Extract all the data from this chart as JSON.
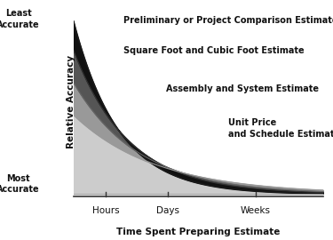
{
  "xlabel": "Time Spent Preparing Estimate",
  "ylabel": "Relative Accuracy",
  "y_least_label": "Least\nAccurate",
  "y_most_label": "Most\nAccurate",
  "x_ticks_labels": [
    "Hours",
    "Days",
    "Weeks"
  ],
  "x_ticks_pos": [
    0.13,
    0.38,
    0.73
  ],
  "curve_labels": [
    "Preliminary or Project Comparison Estimate",
    "Square Foot and Cubic Foot Estimate",
    "Assembly and System Estimate",
    "Unit Price\nand Schedule Estimate"
  ],
  "colors": {
    "c1": "#111111",
    "c2": "#555555",
    "c3": "#999999",
    "c4": "#cccccc",
    "bg": "#ffffff",
    "text": "#111111"
  },
  "font_sizes": {
    "label_bold": 7.5,
    "tick": 7.5,
    "annotation": 7.0
  }
}
